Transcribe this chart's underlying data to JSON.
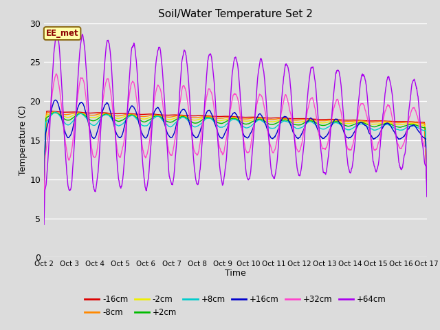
{
  "title": "Soil/Water Temperature Set 2",
  "xlabel": "Time",
  "ylabel": "Temperature (C)",
  "annotation": "EE_met",
  "background_color": "#dcdcdc",
  "ylim": [
    0,
    30
  ],
  "yticks": [
    0,
    5,
    10,
    15,
    20,
    25,
    30
  ],
  "n_days": 15,
  "xtick_labels": [
    "Oct 2",
    "Oct 3",
    "Oct 4",
    "Oct 5",
    "Oct 6",
    "Oct 7",
    "Oct 8",
    "Oct 9",
    "Oct 10",
    "Oct 11",
    "Oct 12",
    "Oct 13",
    "Oct 14",
    "Oct 15",
    "Oct 16",
    "Oct 17"
  ],
  "series": [
    {
      "label": "-16cm",
      "color": "#dd0000"
    },
    {
      "label": "-8cm",
      "color": "#ff8800"
    },
    {
      "label": "-2cm",
      "color": "#eeee00"
    },
    {
      "label": "+2cm",
      "color": "#00bb00"
    },
    {
      "label": "+8cm",
      "color": "#00cccc"
    },
    {
      "label": "+16cm",
      "color": "#0000cc"
    },
    {
      "label": "+32cm",
      "color": "#ff44cc"
    },
    {
      "label": "+64cm",
      "color": "#aa00ee"
    }
  ]
}
